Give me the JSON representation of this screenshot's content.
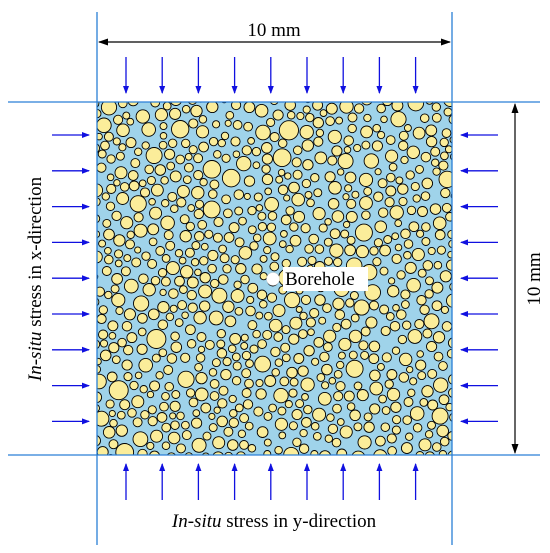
{
  "labels": {
    "top_dimension": "10 mm",
    "right_dimension": "10 mm",
    "borehole": "Borehole",
    "x_stress": {
      "italic": "In-situ",
      "rest": " stress in x-direction"
    },
    "y_stress": {
      "italic": "In-situ",
      "rest": " stress in y-direction"
    }
  }
}
